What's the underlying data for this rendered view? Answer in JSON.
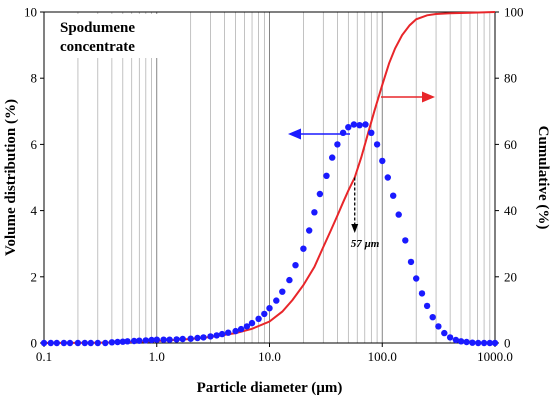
{
  "chart_data": {
    "type": "scatter",
    "x_scale": "log",
    "xlim": [
      0.1,
      1000
    ],
    "ylim_left": [
      0,
      10
    ],
    "ylim_right": [
      0,
      100
    ],
    "grid": "log-vertical",
    "xlabel": "Particle diameter (µm)",
    "ylabel_left": "Volume distribution (%)",
    "ylabel_right": "Cumulative (%)",
    "x_tick_labels": [
      "0.1",
      "1.0",
      "10.0",
      "100.0",
      "1000.0"
    ],
    "y_left_tick_labels": [
      "0",
      "2",
      "4",
      "6",
      "8",
      "10"
    ],
    "y_right_tick_labels": [
      "0",
      "20",
      "40",
      "60",
      "80",
      "100"
    ],
    "note_lines": [
      "Spodumene",
      "concentrate"
    ],
    "annotation": {
      "text": "57 µm",
      "x": 57
    },
    "colors": {
      "distribution": "#1a1aff",
      "cumulative": "#e8262a",
      "marker_arrow": "#000000"
    },
    "series": [
      {
        "axis": "left",
        "kind": "markers",
        "points": [
          [
            0.1,
            0.0
          ],
          [
            0.115,
            0.0
          ],
          [
            0.13,
            0.0
          ],
          [
            0.15,
            0.0
          ],
          [
            0.17,
            0.0
          ],
          [
            0.2,
            0.0
          ],
          [
            0.23,
            0.0
          ],
          [
            0.26,
            0.0
          ],
          [
            0.3,
            0.0
          ],
          [
            0.35,
            0.0
          ],
          [
            0.4,
            0.02
          ],
          [
            0.45,
            0.03
          ],
          [
            0.5,
            0.04
          ],
          [
            0.55,
            0.05
          ],
          [
            0.63,
            0.06
          ],
          [
            0.7,
            0.07
          ],
          [
            0.8,
            0.08
          ],
          [
            0.9,
            0.09
          ],
          [
            1.0,
            0.1
          ],
          [
            1.15,
            0.1
          ],
          [
            1.3,
            0.1
          ],
          [
            1.5,
            0.11
          ],
          [
            1.7,
            0.12
          ],
          [
            2.0,
            0.13
          ],
          [
            2.3,
            0.15
          ],
          [
            2.6,
            0.17
          ],
          [
            3.0,
            0.2
          ],
          [
            3.4,
            0.23
          ],
          [
            3.8,
            0.27
          ],
          [
            4.3,
            0.31
          ],
          [
            5.0,
            0.36
          ],
          [
            5.6,
            0.42
          ],
          [
            6.3,
            0.5
          ],
          [
            7.0,
            0.6
          ],
          [
            8.0,
            0.73
          ],
          [
            9.0,
            0.88
          ],
          [
            10.0,
            1.05
          ],
          [
            11.5,
            1.28
          ],
          [
            13.0,
            1.55
          ],
          [
            15.0,
            1.9
          ],
          [
            17.0,
            2.35
          ],
          [
            20.0,
            2.85
          ],
          [
            22.5,
            3.4
          ],
          [
            25.0,
            3.95
          ],
          [
            28.0,
            4.5
          ],
          [
            32.0,
            5.05
          ],
          [
            36.0,
            5.6
          ],
          [
            40.0,
            6.0
          ],
          [
            45.0,
            6.35
          ],
          [
            50.0,
            6.52
          ],
          [
            56.0,
            6.6
          ],
          [
            63.0,
            6.58
          ],
          [
            71.0,
            6.6
          ],
          [
            80.0,
            6.35
          ],
          [
            90.0,
            6.0
          ],
          [
            100.0,
            5.5
          ],
          [
            112.0,
            5.0
          ],
          [
            125.0,
            4.45
          ],
          [
            140.0,
            3.88
          ],
          [
            160.0,
            3.1
          ],
          [
            180.0,
            2.45
          ],
          [
            200.0,
            1.95
          ],
          [
            225.0,
            1.5
          ],
          [
            250.0,
            1.12
          ],
          [
            280.0,
            0.78
          ],
          [
            315.0,
            0.5
          ],
          [
            355.0,
            0.3
          ],
          [
            400.0,
            0.17
          ],
          [
            450.0,
            0.09
          ],
          [
            500.0,
            0.05
          ],
          [
            560.0,
            0.03
          ],
          [
            630.0,
            0.01
          ],
          [
            710.0,
            0.0
          ],
          [
            800.0,
            0.0
          ],
          [
            900.0,
            0.0
          ],
          [
            1000.0,
            0.0
          ]
        ]
      },
      {
        "axis": "right",
        "kind": "line",
        "points": [
          [
            0.1,
            0
          ],
          [
            0.3,
            0.1
          ],
          [
            0.6,
            0.3
          ],
          [
            1.0,
            0.6
          ],
          [
            2.0,
            1.2
          ],
          [
            3.0,
            1.8
          ],
          [
            5.0,
            3.0
          ],
          [
            7.0,
            4.3
          ],
          [
            10.0,
            6.5
          ],
          [
            13.0,
            9.5
          ],
          [
            16.0,
            13.0
          ],
          [
            20.0,
            17.5
          ],
          [
            25.0,
            23.0
          ],
          [
            30.0,
            29.0
          ],
          [
            35.0,
            34.0
          ],
          [
            40.0,
            38.5
          ],
          [
            45.0,
            42.5
          ],
          [
            50.0,
            46.0
          ],
          [
            57.0,
            50.0
          ],
          [
            65.0,
            56.0
          ],
          [
            75.0,
            63.5
          ],
          [
            85.0,
            70.0
          ],
          [
            100.0,
            78.0
          ],
          [
            115.0,
            84.5
          ],
          [
            130.0,
            89.0
          ],
          [
            150.0,
            93.0
          ],
          [
            175.0,
            96.0
          ],
          [
            200.0,
            97.8
          ],
          [
            250.0,
            99.0
          ],
          [
            300.0,
            99.4
          ],
          [
            400.0,
            99.6
          ],
          [
            600.0,
            99.8
          ],
          [
            1000.0,
            100.0
          ]
        ]
      }
    ]
  }
}
